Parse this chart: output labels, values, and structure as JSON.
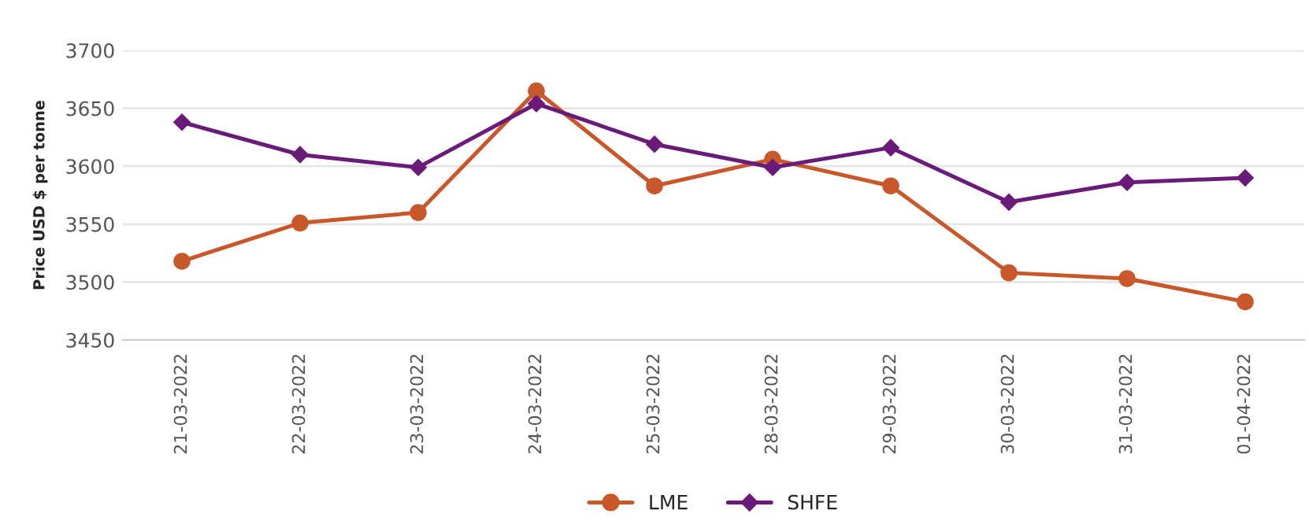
{
  "chart_data": {
    "type": "line",
    "ylabel": "Price USD $ per tonne",
    "categories": [
      "21-03-2022",
      "22-03-2022",
      "23-03-2022",
      "24-03-2022",
      "25-03-2022",
      "28-03-2022",
      "29-03-2022",
      "30-03-2022",
      "31-03-2022",
      "01-04-2022"
    ],
    "series": [
      {
        "name": "LME",
        "color": "#c8572a",
        "marker": "circle",
        "values": [
          3518,
          3551,
          3560,
          3665,
          3583,
          3606,
          3583,
          3508,
          3503,
          3483
        ]
      },
      {
        "name": "SHFE",
        "color": "#6a1b7a",
        "marker": "diamond",
        "values": [
          3638,
          3610,
          3599,
          3654,
          3619,
          3599,
          3616,
          3569,
          3586,
          3590
        ]
      }
    ],
    "ylim": [
      3450,
      3700
    ],
    "yticks": [
      3450,
      3500,
      3550,
      3600,
      3650,
      3700
    ],
    "grid": "y",
    "legend": "bottom",
    "line_style": "solid"
  }
}
